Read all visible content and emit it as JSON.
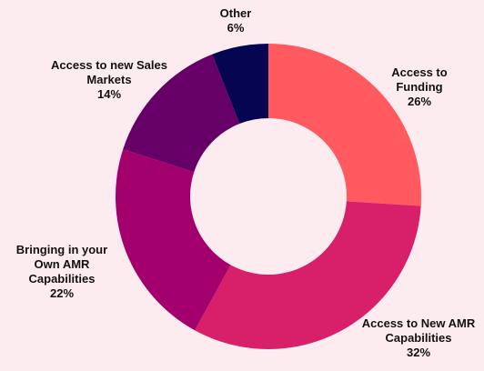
{
  "chart_data": {
    "type": "pie",
    "donut": true,
    "legend": "none",
    "background": "#fdecef",
    "slices": [
      {
        "label_lines": [
          "Access to",
          "Funding"
        ],
        "value": 26,
        "value_label": "26%",
        "color": "#ff5a5f"
      },
      {
        "label_lines": [
          "Access to New AMR",
          "Capabilities"
        ],
        "value": 32,
        "value_label": "32%",
        "color": "#d8206a"
      },
      {
        "label_lines": [
          "Bringing in your",
          "Own AMR",
          "Capabilities"
        ],
        "value": 22,
        "value_label": "22%",
        "color": "#a3006e"
      },
      {
        "label_lines": [
          "Access to new Sales",
          "Markets"
        ],
        "value": 14,
        "value_label": "14%",
        "color": "#660066"
      },
      {
        "label_lines": [
          "Other"
        ],
        "value": 6,
        "value_label": "6%",
        "color": "#050552"
      }
    ]
  }
}
